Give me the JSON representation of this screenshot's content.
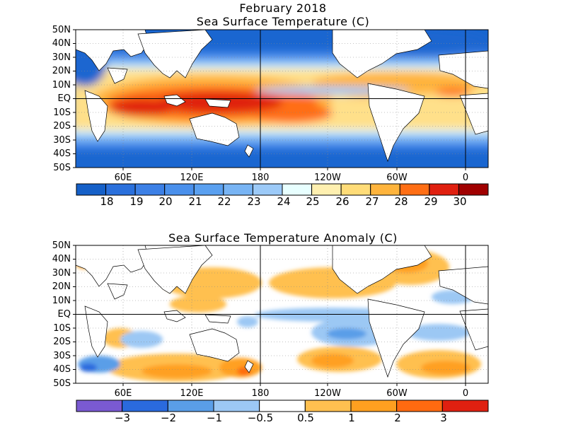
{
  "header": {
    "title": "February 2018",
    "map1_title": "Sea Surface Temperature (C)",
    "map2_title": "Sea Surface Temperature Anomaly (C)"
  },
  "axes": {
    "lat_labels": [
      "50N",
      "40N",
      "30N",
      "20N",
      "10N",
      "EQ",
      "10S",
      "20S",
      "30S",
      "40S",
      "50S"
    ],
    "lon_labels": [
      "60E",
      "120E",
      "180",
      "120W",
      "60W",
      "0"
    ]
  },
  "sst_colorbar": {
    "labels": [
      "18",
      "19",
      "20",
      "21",
      "22",
      "23",
      "24",
      "25",
      "26",
      "27",
      "28",
      "29",
      "30"
    ],
    "colors": [
      "#1560c8",
      "#2a70dc",
      "#3c80e6",
      "#4a90ec",
      "#5aa0f0",
      "#78b4f4",
      "#9ccaf8",
      "#e8ffff",
      "#fff0b0",
      "#ffdc78",
      "#ffb43c",
      "#ff6e14",
      "#e02010",
      "#a00000"
    ]
  },
  "anomaly_colorbar": {
    "labels": [
      "−3",
      "−2",
      "−1",
      "−0.5",
      "0.5",
      "1",
      "2",
      "3"
    ],
    "colors": [
      "#7a5ad2",
      "#2a6ade",
      "#5a9ee8",
      "#9cc8f4",
      "#ffffff",
      "#ffc050",
      "#ffa020",
      "#ff6a10",
      "#e02010"
    ]
  }
}
